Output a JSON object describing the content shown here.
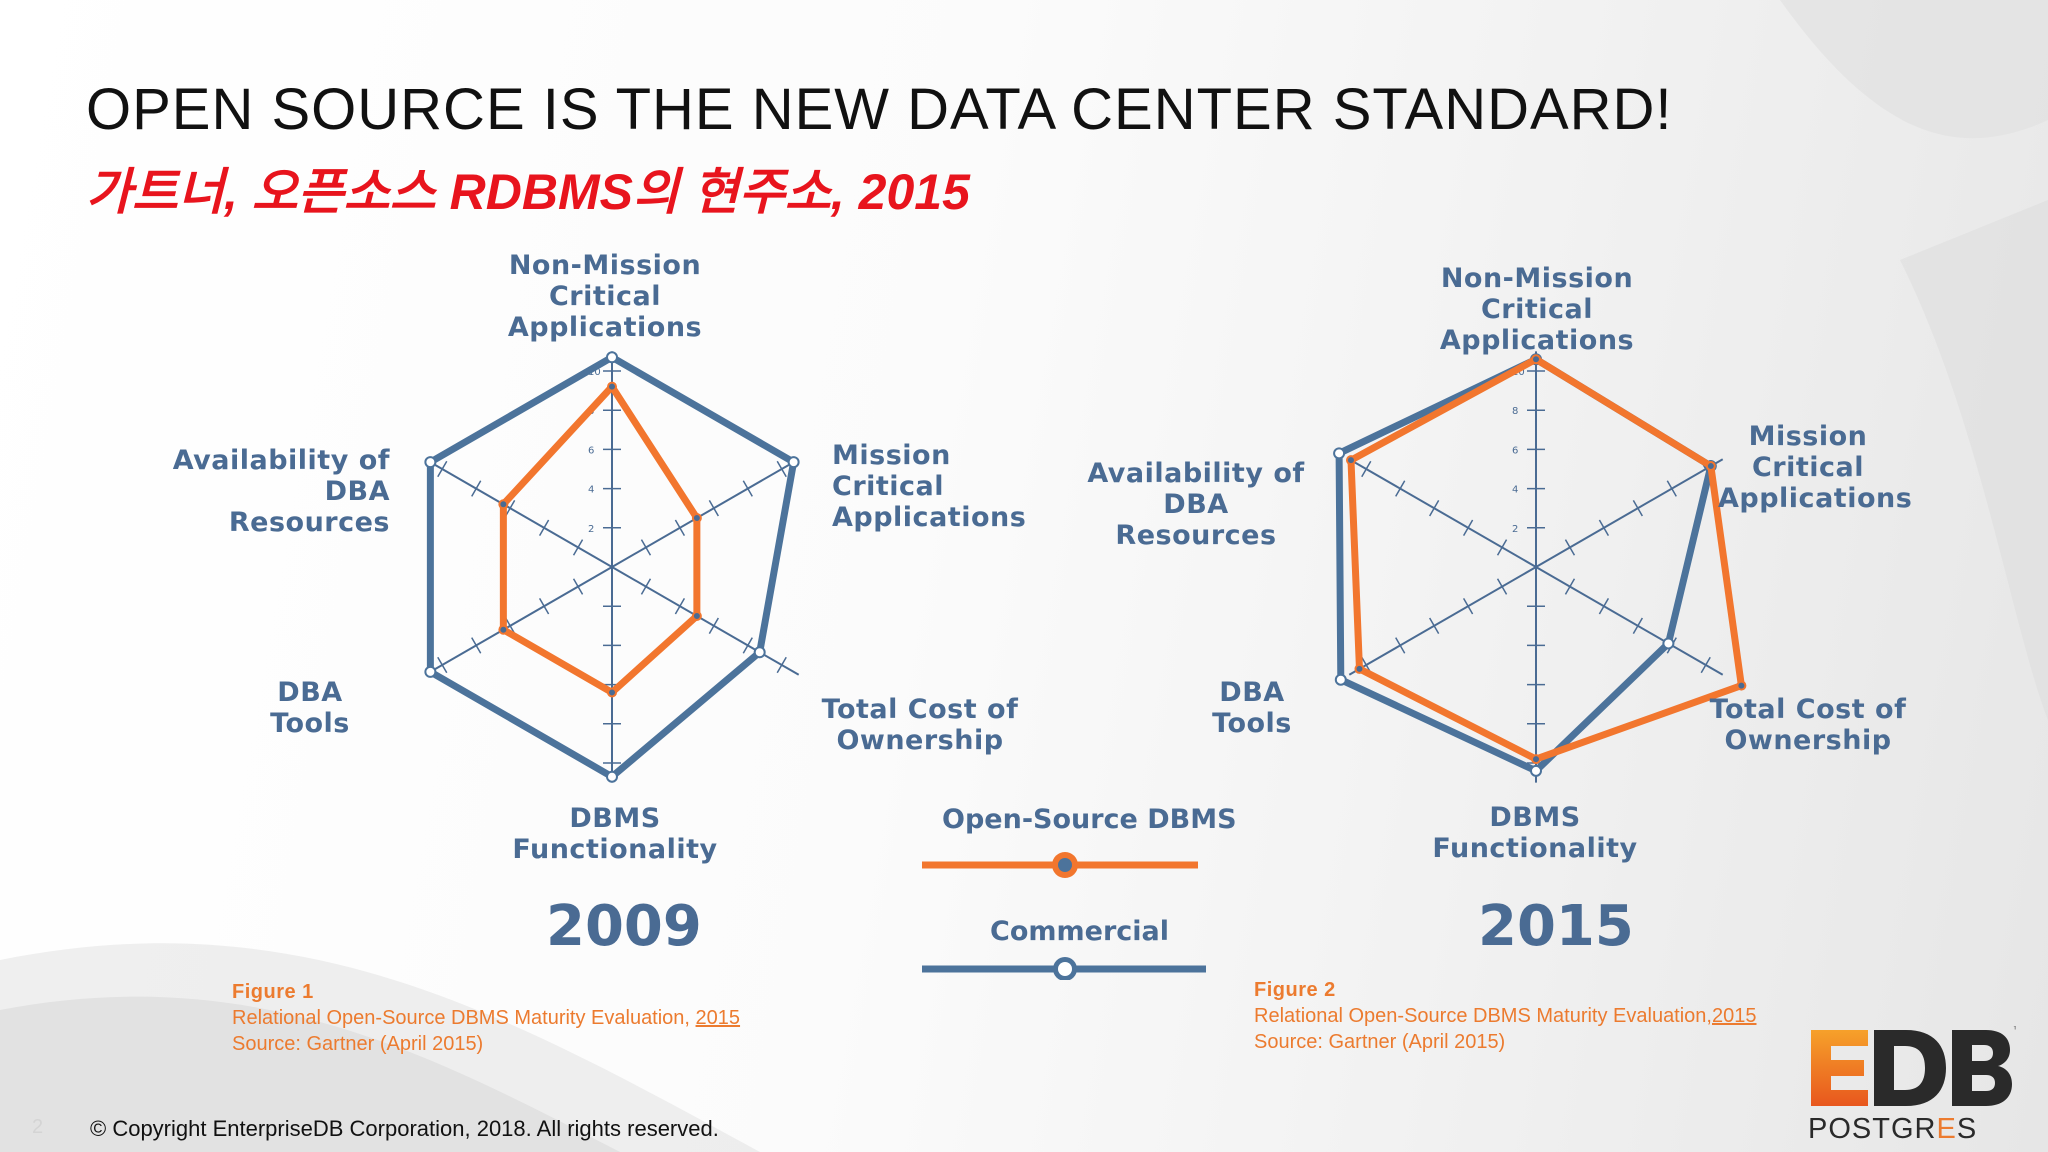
{
  "slide": {
    "title": "OPEN SOURCE IS THE NEW DATA CENTER STANDARD!",
    "subtitle": "가트너, 오픈소스 RDBMS의 현주소, 2015",
    "footer": "© Copyright EnterpriseDB Corporation, 2018. All rights reserved.",
    "page_number": "2"
  },
  "colors": {
    "open_source": "#f2762e",
    "commercial": "#4c739b",
    "label": "#4a6b93",
    "subtitle": "#e8141d",
    "figure_caption": "#ec7b2f"
  },
  "legend": {
    "open_source": "Open-Source DBMS",
    "commercial": "Commercial"
  },
  "charts_text": [
    {
      "year": "2009",
      "axes": {
        "top": "Non-Mission Critical\nApplications",
        "upper_right": "Mission\nCritical\nApplications",
        "lower_right": "Total Cost of\nOwnership",
        "bottom": "DBMS\nFunctionality",
        "lower_left": "DBA\nTools",
        "upper_left": "Availability of\nDBA Resources"
      },
      "figure": {
        "label": "Figure 1",
        "caption_text": "Relational Open-Source DBMS Maturity Evaluation, ",
        "caption_year": "2015",
        "source": "Source: Gartner (April 2015)"
      }
    },
    {
      "year": "2015",
      "axes": {
        "top": "Non-Mission Critical\nApplications",
        "upper_right": "Mission\nCritical\nApplications",
        "lower_right": "Total Cost of\nOwnership",
        "bottom": "DBMS\nFunctionality",
        "lower_left": "DBA\nTools",
        "upper_left": "Availability of DBA\nResources"
      },
      "figure": {
        "label": "Figure 2",
        "caption_text": "Relational Open-Source DBMS Maturity Evaluation,",
        "caption_year": "2015",
        "source": "Source: Gartner (April 2015)"
      }
    }
  ],
  "chart_data": [
    {
      "type": "radar",
      "title": "2009",
      "axes": [
        "Non-Mission Critical Applications",
        "Mission Critical Applications",
        "Total Cost of Ownership",
        "DBMS Functionality",
        "DBA Tools",
        "Availability of DBA Resources"
      ],
      "scale_ticks": [
        "2",
        "4",
        "6",
        "8",
        "10"
      ],
      "range": [
        0,
        10
      ],
      "series": [
        {
          "name": "Open-Source DBMS",
          "values": [
            9.2,
            5.0,
            5.0,
            6.4,
            6.4,
            6.4
          ]
        },
        {
          "name": "Commercial",
          "values": [
            10.7,
            10.7,
            8.7,
            10.7,
            10.7,
            10.7
          ]
        }
      ]
    },
    {
      "type": "radar",
      "title": "2015",
      "axes": [
        "Non-Mission Critical Applications",
        "Mission Critical Applications",
        "Total Cost of Ownership",
        "DBMS Functionality",
        "DBA Tools",
        "Availability of DBA Resources"
      ],
      "scale_ticks": [
        "2",
        "4",
        "6",
        "8",
        "10"
      ],
      "range": [
        0,
        10
      ],
      "series": [
        {
          "name": "Open-Source DBMS",
          "values": [
            10.6,
            10.3,
            12.1,
            9.8,
            10.4,
            10.9
          ]
        },
        {
          "name": "Commercial",
          "values": [
            10.6,
            10.3,
            7.8,
            10.4,
            11.5,
            11.6
          ]
        }
      ]
    }
  ]
}
